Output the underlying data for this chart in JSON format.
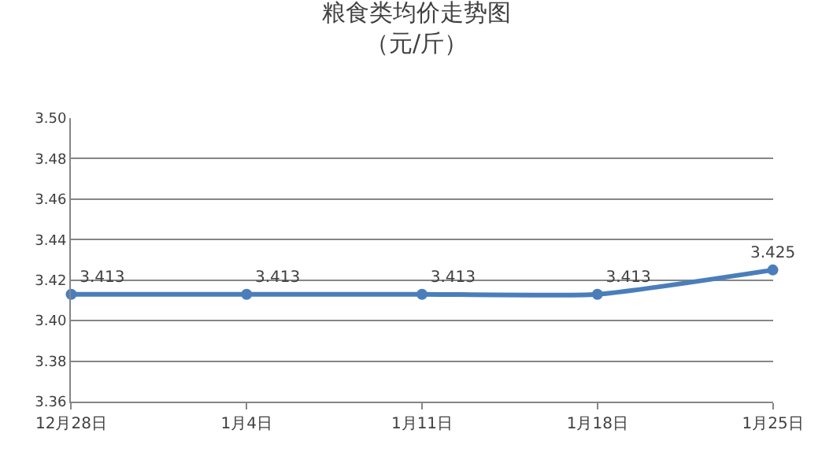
{
  "chart_data": {
    "type": "line",
    "title": "粮食类均价走势图",
    "subtitle": "（元/斤）",
    "categories": [
      "12月28日",
      "1月4日",
      "1月11日",
      "1月18日",
      "1月25日"
    ],
    "series": [
      {
        "color": "#4a7ebb",
        "values": [
          3.413,
          3.413,
          3.413,
          3.413,
          3.425
        ]
      }
    ],
    "ylim": [
      3.36,
      3.5
    ],
    "yticks": [
      3.36,
      3.38,
      {
        "value": 3.4,
        "label": "3.40"
      },
      3.42,
      3.44,
      3.46,
      3.48,
      {
        "value": 3.5,
        "label": "3.50"
      }
    ],
    "grid": "y",
    "marker": "circle",
    "line_style": "solid",
    "data_labels": true,
    "legend": false
  }
}
